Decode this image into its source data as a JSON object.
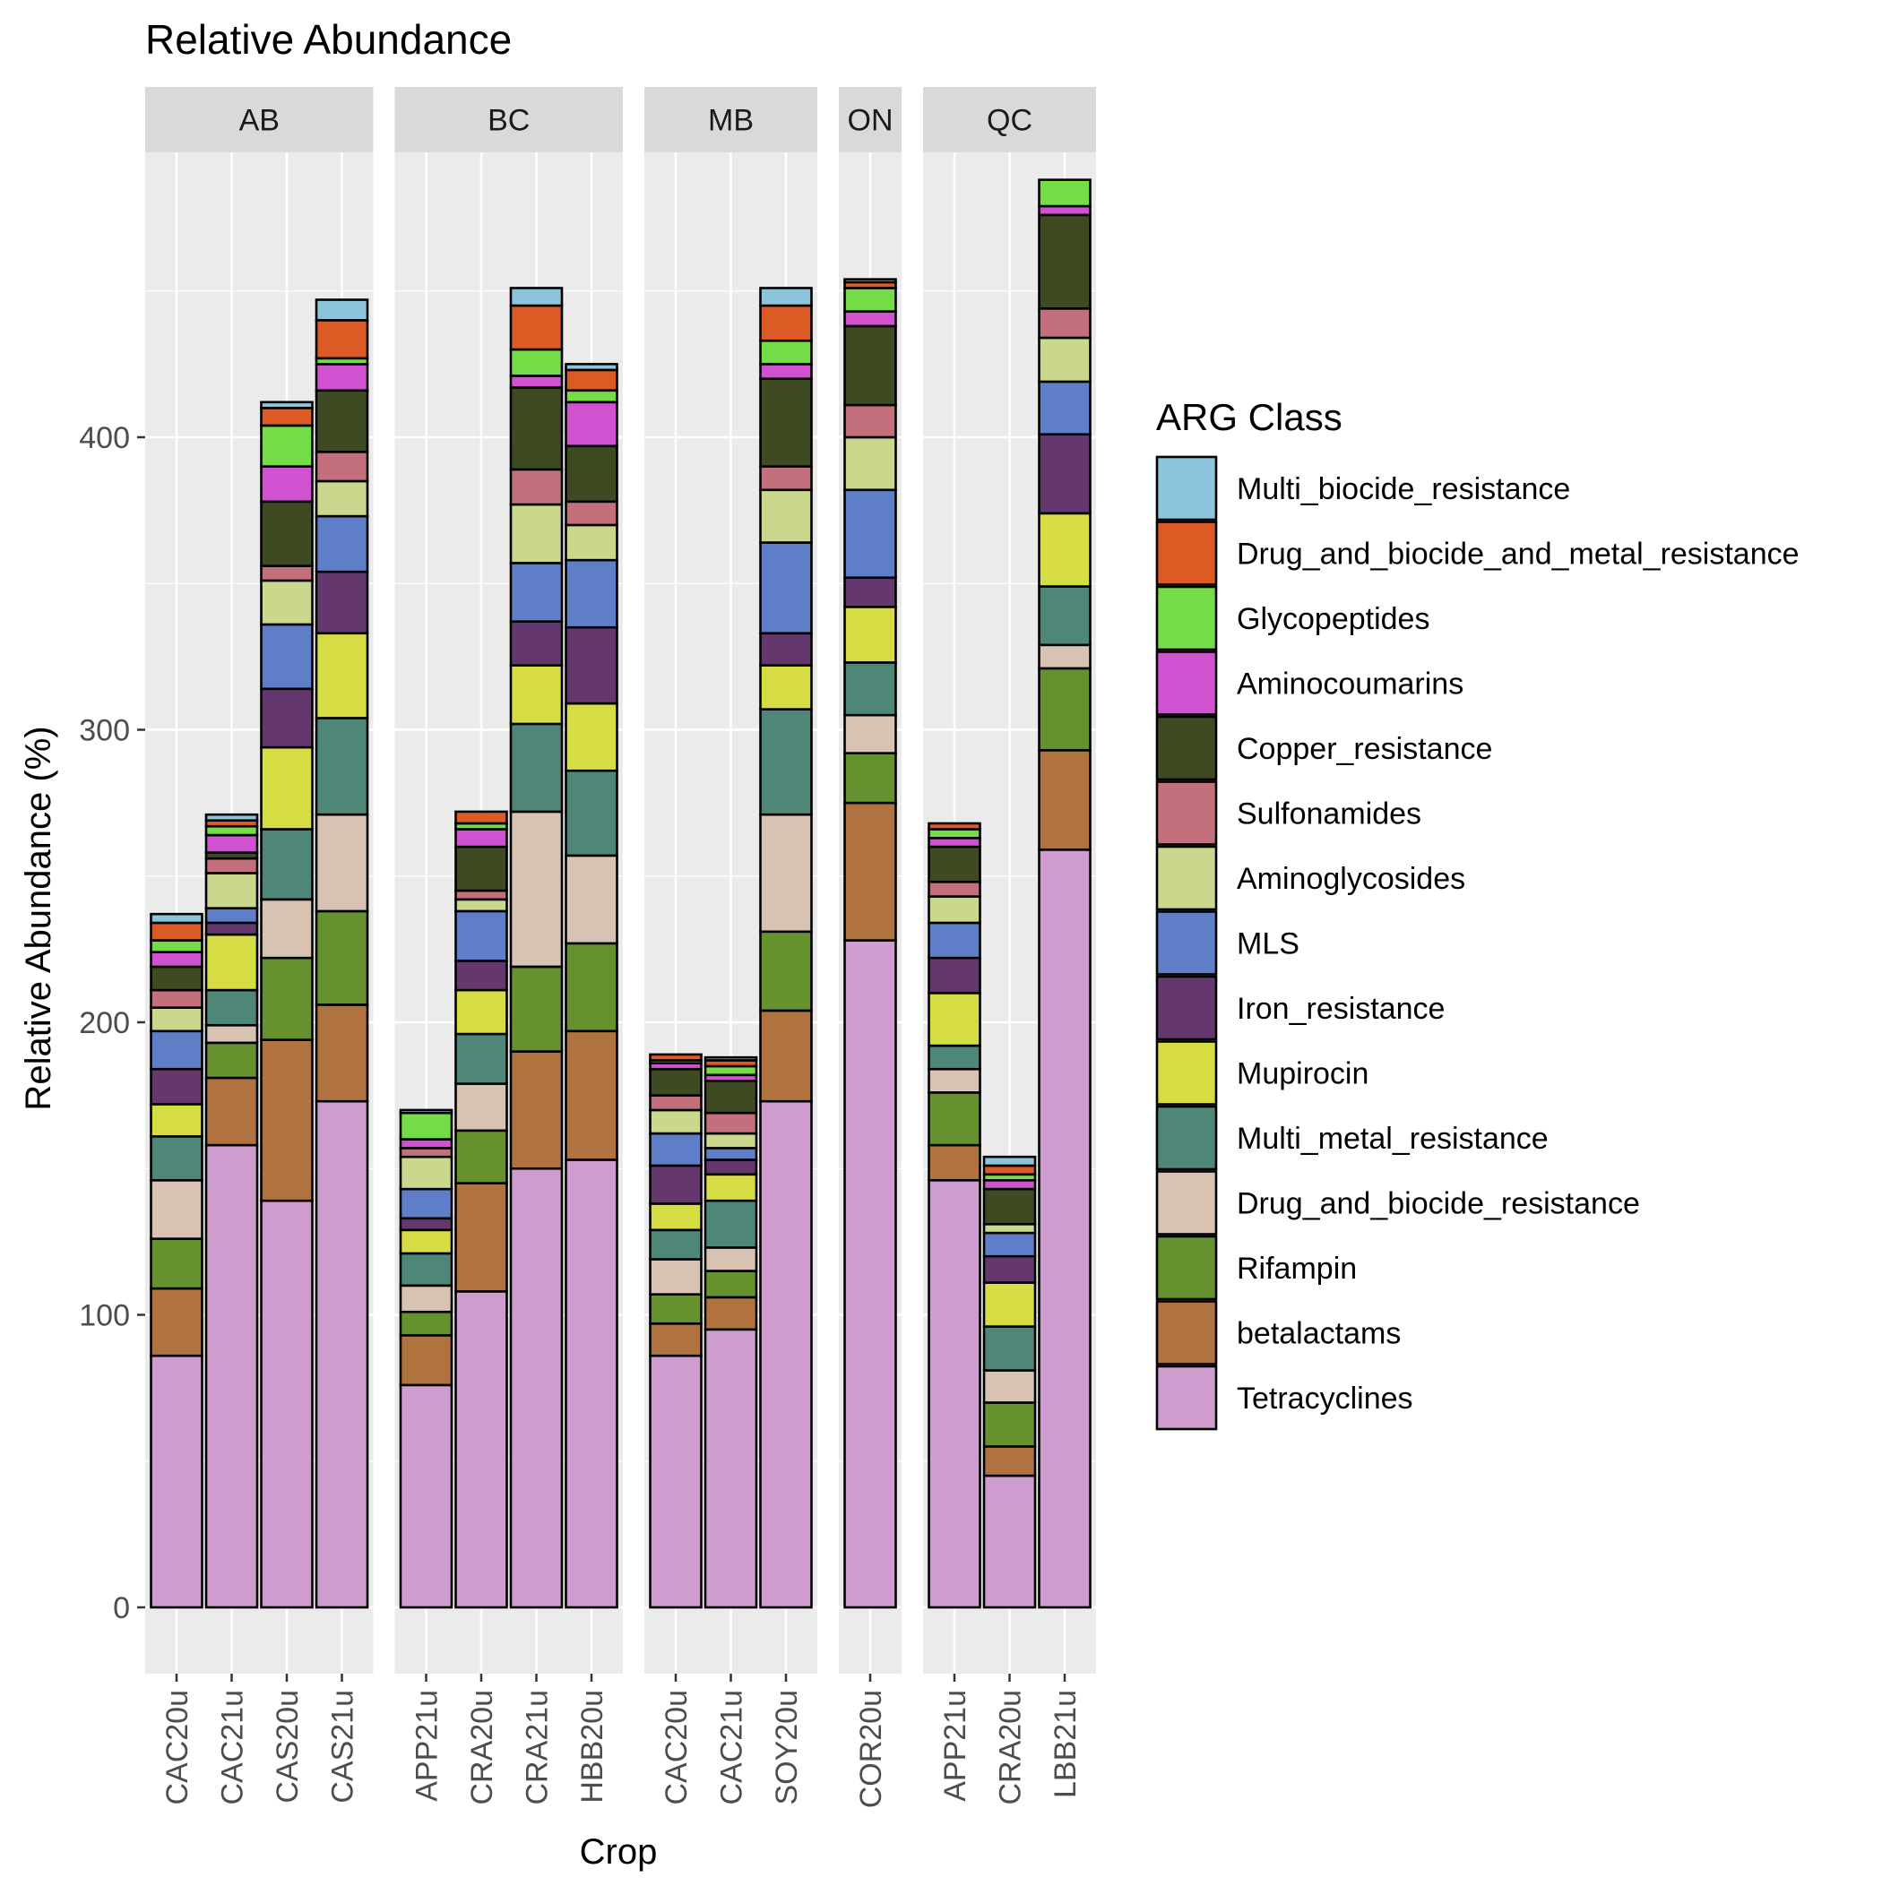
{
  "chart_data": {
    "type": "bar",
    "stacked": true,
    "faceted": true,
    "title": "Relative Abundance",
    "xlabel": "Crop",
    "ylabel": "Relative Abundance (%)",
    "ylim": [
      0,
      500
    ],
    "yticks": [
      0,
      100,
      200,
      300,
      400
    ],
    "grid": true,
    "legend": {
      "title": "ARG Class",
      "position": "right",
      "entries": [
        {
          "name": "Multi_biocide_resistance",
          "color": "#8CC4DC"
        },
        {
          "name": "Drug_and_biocide_and_metal_resistance",
          "color": "#DC5A24"
        },
        {
          "name": "Glycopeptides",
          "color": "#74DC46"
        },
        {
          "name": "Aminocoumarins",
          "color": "#D052D0"
        },
        {
          "name": "Copper_resistance",
          "color": "#3E4A22"
        },
        {
          "name": "Sulfonamides",
          "color": "#C4707C"
        },
        {
          "name": "Aminoglycosides",
          "color": "#CAD88E"
        },
        {
          "name": "MLS",
          "color": "#5E7EC8"
        },
        {
          "name": "Iron_resistance",
          "color": "#65376F"
        },
        {
          "name": "Mupirocin",
          "color": "#D6DC44"
        },
        {
          "name": "Multi_metal_resistance",
          "color": "#4E8678"
        },
        {
          "name": "Drug_and_biocide_resistance",
          "color": "#D8C2B2"
        },
        {
          "name": "Rifampin",
          "color": "#66912F"
        },
        {
          "name": "betalactams",
          "color": "#B0723E"
        },
        {
          "name": "Tetracyclines",
          "color": "#CE9CCE"
        }
      ]
    },
    "facets": [
      {
        "name": "AB",
        "bars": [
          {
            "label": "CAC20u",
            "values": [
              3,
              6,
              4,
              5,
              8,
              6,
              8,
              13,
              12,
              11,
              15,
              20,
              17,
              23,
              86
            ]
          },
          {
            "label": "CAC21u",
            "values": [
              2,
              2,
              3,
              6,
              2,
              5,
              12,
              5,
              4,
              19,
              12,
              6,
              12,
              23,
              158
            ]
          },
          {
            "label": "CAS20u",
            "values": [
              2,
              6,
              14,
              12,
              22,
              5,
              15,
              22,
              20,
              28,
              24,
              20,
              28,
              55,
              139
            ]
          },
          {
            "label": "CAS21u",
            "values": [
              7,
              13,
              2,
              9,
              21,
              10,
              12,
              19,
              21,
              29,
              33,
              33,
              32,
              33,
              173
            ]
          }
        ]
      },
      {
        "name": "BC",
        "bars": [
          {
            "label": "APP21u",
            "values": [
              1,
              0,
              9,
              3,
              0,
              3,
              11,
              10,
              4,
              8,
              11,
              9,
              8,
              17,
              76
            ]
          },
          {
            "label": "CRA20u",
            "values": [
              0,
              4,
              2,
              6,
              15,
              3,
              4,
              17,
              10,
              15,
              17,
              16,
              18,
              37,
              108
            ]
          },
          {
            "label": "CRA21u",
            "values": [
              6,
              15,
              9,
              4,
              28,
              12,
              20,
              20,
              15,
              20,
              30,
              53,
              29,
              40,
              150
            ]
          },
          {
            "label": "HBB20u",
            "values": [
              2,
              7,
              4,
              15,
              19,
              8,
              12,
              23,
              26,
              23,
              29,
              30,
              30,
              44,
              153
            ]
          }
        ]
      },
      {
        "name": "MB",
        "bars": [
          {
            "label": "CAC20u",
            "values": [
              0,
              2,
              1,
              2,
              9,
              5,
              8,
              11,
              13,
              9,
              10,
              12,
              10,
              11,
              86
            ]
          },
          {
            "label": "CAC21u",
            "values": [
              1,
              2,
              3,
              2,
              11,
              7,
              5,
              4,
              5,
              9,
              16,
              8,
              9,
              11,
              95
            ]
          },
          {
            "label": "SOY20u",
            "values": [
              6,
              12,
              8,
              5,
              30,
              8,
              18,
              31,
              11,
              15,
              36,
              40,
              27,
              31,
              173
            ]
          }
        ]
      },
      {
        "name": "ON",
        "bars": [
          {
            "label": "COR20u",
            "values": [
              1,
              2,
              8,
              5,
              27,
              11,
              18,
              30,
              10,
              19,
              18,
              13,
              17,
              47,
              228
            ]
          }
        ]
      },
      {
        "name": "QC",
        "bars": [
          {
            "label": "APP21u",
            "values": [
              0,
              2,
              3,
              3,
              12,
              5,
              9,
              12,
              12,
              18,
              8,
              8,
              18,
              12,
              146
            ]
          },
          {
            "label": "CRA20u",
            "values": [
              3,
              3,
              2,
              3,
              12,
              0,
              3,
              8,
              9,
              15,
              15,
              11,
              15,
              10,
              45
            ]
          },
          {
            "label": "LBB21u",
            "values": [
              0,
              0,
              9,
              3,
              32,
              10,
              15,
              18,
              27,
              25,
              20,
              8,
              28,
              34,
              259
            ]
          }
        ]
      }
    ]
  }
}
